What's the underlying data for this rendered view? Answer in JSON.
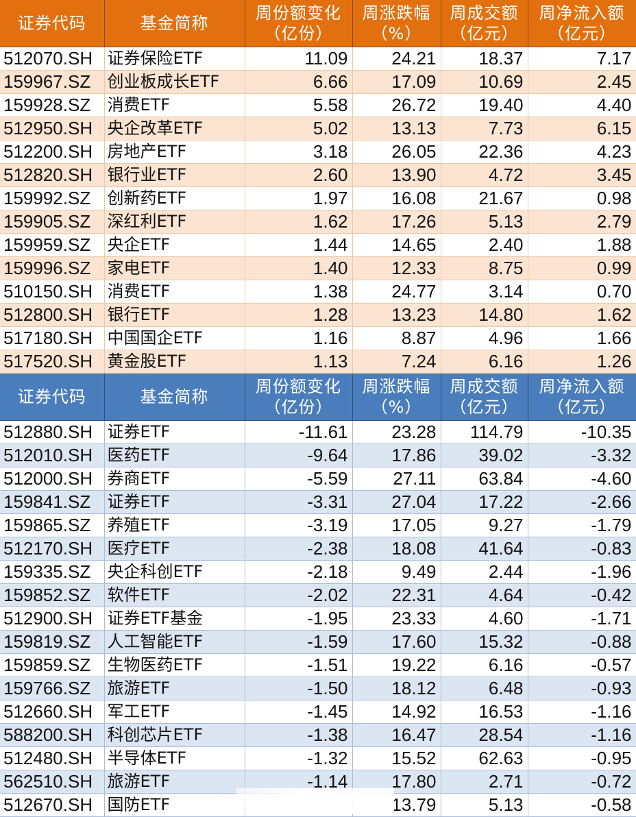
{
  "columns": [
    "证券代码",
    "基金简称",
    "周份额变化\n（亿份）",
    "周涨跌幅\n（%）",
    "周成交额\n（亿元）",
    "周净流入额\n（亿元）"
  ],
  "inflow_table": {
    "header": {
      "code": "证券代码",
      "name": "基金简称",
      "share_change_l1": "周份额变化",
      "share_change_l2": "（亿份）",
      "pct_change_l1": "周涨跌幅",
      "pct_change_l2": "（%）",
      "turnover_l1": "周成交额",
      "turnover_l2": "（亿元）",
      "net_inflow_l1": "周净流入额",
      "net_inflow_l2": "（亿元）"
    },
    "header_color": "#e2700f",
    "rows": [
      {
        "code": "512070.SH",
        "name": "证券保险ETF",
        "share_change": "11.09",
        "pct_change": "24.21",
        "turnover": "18.37",
        "net_inflow": "7.17"
      },
      {
        "code": "159967.SZ",
        "name": "创业板成长ETF",
        "share_change": "6.66",
        "pct_change": "17.09",
        "turnover": "10.69",
        "net_inflow": "2.45"
      },
      {
        "code": "159928.SZ",
        "name": "消费ETF",
        "share_change": "5.58",
        "pct_change": "26.72",
        "turnover": "19.40",
        "net_inflow": "4.40"
      },
      {
        "code": "512950.SH",
        "name": "央企改革ETF",
        "share_change": "5.02",
        "pct_change": "13.13",
        "turnover": "7.73",
        "net_inflow": "6.15"
      },
      {
        "code": "512200.SH",
        "name": "房地产ETF",
        "share_change": "3.18",
        "pct_change": "26.05",
        "turnover": "22.36",
        "net_inflow": "4.23"
      },
      {
        "code": "512820.SH",
        "name": "银行业ETF",
        "share_change": "2.60",
        "pct_change": "13.90",
        "turnover": "4.72",
        "net_inflow": "3.45"
      },
      {
        "code": "159992.SZ",
        "name": "创新药ETF",
        "share_change": "1.97",
        "pct_change": "16.08",
        "turnover": "21.67",
        "net_inflow": "0.98"
      },
      {
        "code": "159905.SZ",
        "name": "深红利ETF",
        "share_change": "1.62",
        "pct_change": "17.26",
        "turnover": "5.13",
        "net_inflow": "2.79"
      },
      {
        "code": "159959.SZ",
        "name": "央企ETF",
        "share_change": "1.44",
        "pct_change": "14.65",
        "turnover": "2.40",
        "net_inflow": "1.88"
      },
      {
        "code": "159996.SZ",
        "name": "家电ETF",
        "share_change": "1.40",
        "pct_change": "12.33",
        "turnover": "8.75",
        "net_inflow": "0.99"
      },
      {
        "code": "510150.SH",
        "name": "消费ETF",
        "share_change": "1.38",
        "pct_change": "24.77",
        "turnover": "3.14",
        "net_inflow": "0.70"
      },
      {
        "code": "512800.SH",
        "name": "银行ETF",
        "share_change": "1.28",
        "pct_change": "13.23",
        "turnover": "14.80",
        "net_inflow": "1.62"
      },
      {
        "code": "517180.SH",
        "name": "中国国企ETF",
        "share_change": "1.16",
        "pct_change": "8.87",
        "turnover": "4.96",
        "net_inflow": "1.66"
      },
      {
        "code": "517520.SH",
        "name": "黄金股ETF",
        "share_change": "1.13",
        "pct_change": "7.24",
        "turnover": "6.16",
        "net_inflow": "1.26"
      }
    ]
  },
  "outflow_table": {
    "header": {
      "code": "证券代码",
      "name": "基金简称",
      "share_change_l1": "周份额变化",
      "share_change_l2": "（亿份）",
      "pct_change_l1": "周涨跌幅",
      "pct_change_l2": "（%）",
      "turnover_l1": "周成交额",
      "turnover_l2": "（亿元）",
      "net_inflow_l1": "周净流入额",
      "net_inflow_l2": "（亿元）"
    },
    "header_color": "#4a7dbb",
    "rows": [
      {
        "code": "512880.SH",
        "name": "证券ETF",
        "share_change": "-11.61",
        "pct_change": "23.28",
        "turnover": "114.79",
        "net_inflow": "-10.35"
      },
      {
        "code": "512010.SH",
        "name": "医药ETF",
        "share_change": "-9.64",
        "pct_change": "17.86",
        "turnover": "39.02",
        "net_inflow": "-3.32"
      },
      {
        "code": "512000.SH",
        "name": "券商ETF",
        "share_change": "-5.59",
        "pct_change": "27.11",
        "turnover": "63.84",
        "net_inflow": "-4.60"
      },
      {
        "code": "159841.SZ",
        "name": "证券ETF",
        "share_change": "-3.31",
        "pct_change": "27.04",
        "turnover": "17.22",
        "net_inflow": "-2.66"
      },
      {
        "code": "159865.SZ",
        "name": "养殖ETF",
        "share_change": "-3.19",
        "pct_change": "17.05",
        "turnover": "9.27",
        "net_inflow": "-1.79"
      },
      {
        "code": "512170.SH",
        "name": "医疗ETF",
        "share_change": "-2.38",
        "pct_change": "18.08",
        "turnover": "41.64",
        "net_inflow": "-0.83"
      },
      {
        "code": "159335.SZ",
        "name": "央企科创ETF",
        "share_change": "-2.18",
        "pct_change": "9.49",
        "turnover": "2.44",
        "net_inflow": "-1.96"
      },
      {
        "code": "159852.SZ",
        "name": "软件ETF",
        "share_change": "-2.02",
        "pct_change": "22.31",
        "turnover": "4.64",
        "net_inflow": "-0.42"
      },
      {
        "code": "512900.SH",
        "name": "证券ETF基金",
        "share_change": "-1.95",
        "pct_change": "23.33",
        "turnover": "4.60",
        "net_inflow": "-1.71"
      },
      {
        "code": "159819.SZ",
        "name": "人工智能ETF",
        "share_change": "-1.59",
        "pct_change": "17.60",
        "turnover": "15.32",
        "net_inflow": "-0.88"
      },
      {
        "code": "159859.SZ",
        "name": "生物医药ETF",
        "share_change": "-1.51",
        "pct_change": "19.22",
        "turnover": "6.16",
        "net_inflow": "-0.57"
      },
      {
        "code": "159766.SZ",
        "name": "旅游ETF",
        "share_change": "-1.50",
        "pct_change": "18.12",
        "turnover": "6.48",
        "net_inflow": "-0.93"
      },
      {
        "code": "512660.SH",
        "name": "军工ETF",
        "share_change": "-1.45",
        "pct_change": "14.92",
        "turnover": "16.53",
        "net_inflow": "-1.16"
      },
      {
        "code": "588200.SH",
        "name": "科创芯片ETF",
        "share_change": "-1.38",
        "pct_change": "16.47",
        "turnover": "28.54",
        "net_inflow": "-1.16"
      },
      {
        "code": "512480.SH",
        "name": "半导体ETF",
        "share_change": "-1.32",
        "pct_change": "15.52",
        "turnover": "62.63",
        "net_inflow": "-0.95"
      },
      {
        "code": "562510.SH",
        "name": "旅游ETF",
        "share_change": "-1.14",
        "pct_change": "17.80",
        "turnover": "2.71",
        "net_inflow": "-0.72"
      },
      {
        "code": "512670.SH",
        "name": "国防ETF",
        "share_change": "",
        "pct_change": "13.79",
        "turnover": "5.13",
        "net_inflow": "-0.58"
      }
    ]
  }
}
